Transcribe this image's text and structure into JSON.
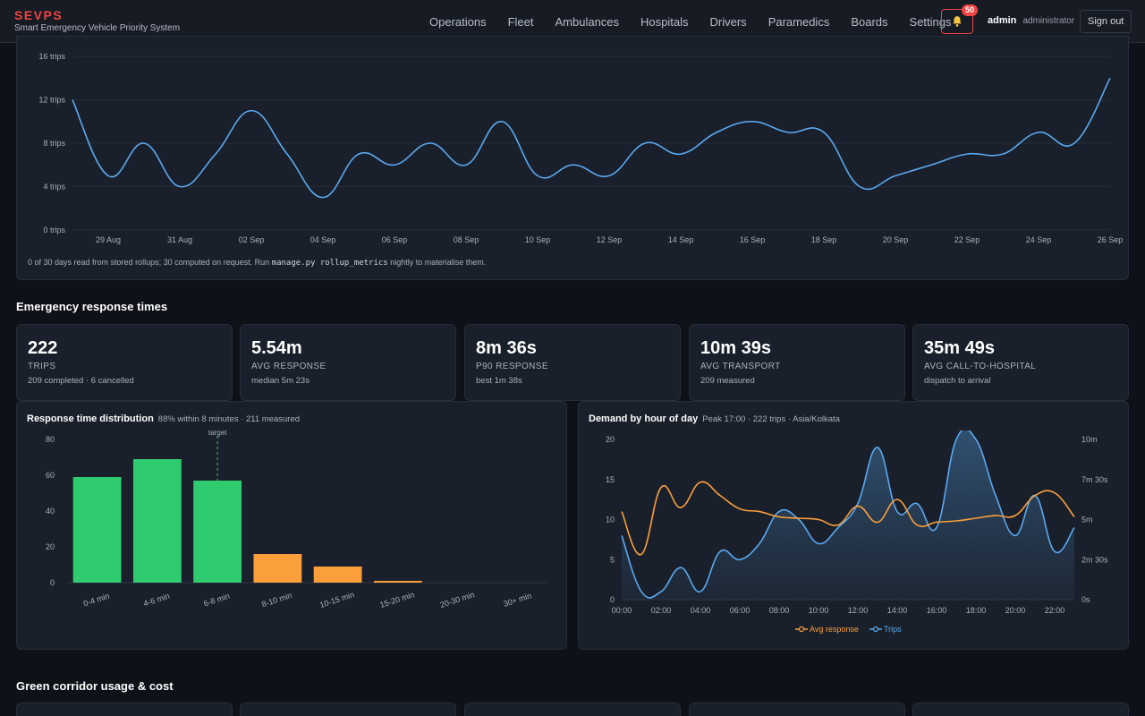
{
  "header": {
    "brand": "SEVPS",
    "subtitle": "Smart Emergency Vehicle Priority System",
    "nav": [
      "Operations",
      "Fleet",
      "Ambulances",
      "Hospitals",
      "Drivers",
      "Paramedics",
      "Boards",
      "Settings"
    ],
    "notification_count": "50",
    "user_name": "admin",
    "user_role": "administrator",
    "signout_label": "Sign out",
    "bell_icon": "bell-icon"
  },
  "trend": {
    "note_pre": "0 of 30 days read from stored rollups; 30 computed on request. Run ",
    "note_code": "manage.py rollup_metrics",
    "note_post": " nightly to materialise them."
  },
  "response_section": {
    "title": "Emergency response times",
    "kpis": [
      {
        "value": "222",
        "label": "Trips",
        "sub": "209 completed · 6 cancelled"
      },
      {
        "value": "5.54m",
        "label": "Avg response",
        "sub": "median 5m 23s"
      },
      {
        "value": "8m 36s",
        "label": "P90 response",
        "sub": "best 1m 38s"
      },
      {
        "value": "10m 39s",
        "label": "Avg transport",
        "sub": "209 measured"
      },
      {
        "value": "35m 49s",
        "label": "Avg call-to-hospital",
        "sub": "dispatch to arrival"
      }
    ]
  },
  "distribution": {
    "title": "Response time distribution",
    "subtitle": "88% within 8 minutes · 211 measured"
  },
  "demand": {
    "title": "Demand by hour of day",
    "subtitle": "Peak 17:00 · 222 trips · Asia/Kolkata"
  },
  "green_section": {
    "title": "Green corridor usage & cost"
  },
  "colors": {
    "trend_line": "#5aa9f0",
    "bar_green": "#2ecc6f",
    "bar_orange": "#fb9f3a",
    "avg_response_line": "#fb9f3a",
    "trips_line": "#5aa9f0",
    "alert_red": "#ef4444"
  },
  "chart_data": [
    {
      "type": "line",
      "x": [
        "28 Aug",
        "29 Aug",
        "30 Aug",
        "31 Aug",
        "01 Sep",
        "02 Sep",
        "03 Sep",
        "04 Sep",
        "05 Sep",
        "06 Sep",
        "07 Sep",
        "08 Sep",
        "09 Sep",
        "10 Sep",
        "11 Sep",
        "12 Sep",
        "13 Sep",
        "14 Sep",
        "15 Sep",
        "16 Sep",
        "17 Sep",
        "18 Sep",
        "19 Sep",
        "20 Sep",
        "21 Sep",
        "22 Sep",
        "23 Sep",
        "24 Sep",
        "25 Sep",
        "26 Sep"
      ],
      "xticks": [
        "29 Aug",
        "31 Aug",
        "02 Sep",
        "04 Sep",
        "06 Sep",
        "08 Sep",
        "10 Sep",
        "12 Sep",
        "14 Sep",
        "16 Sep",
        "18 Sep",
        "20 Sep",
        "22 Sep",
        "24 Sep",
        "26 Sep"
      ],
      "series": [
        {
          "values": [
            12,
            5,
            8,
            4,
            7,
            11,
            7,
            3,
            7,
            6,
            8,
            6,
            10,
            5,
            6,
            5,
            8,
            7,
            9,
            10,
            9,
            9,
            4,
            5,
            6,
            7,
            7,
            9,
            8,
            14
          ]
        }
      ],
      "yticks": [
        "0 trips",
        "4 trips",
        "8 trips",
        "12 trips",
        "16 trips"
      ],
      "ylim": [
        0,
        16
      ]
    },
    {
      "type": "bar",
      "categories": [
        "0-4 min",
        "4-6 min",
        "6-8 min",
        "8-10 min",
        "10-15 min",
        "15-20 min",
        "20-30 min",
        "30+ min"
      ],
      "values": [
        59,
        69,
        57,
        16,
        9,
        1,
        0,
        0
      ],
      "colors": [
        "#2ecc6f",
        "#2ecc6f",
        "#2ecc6f",
        "#fb9f3a",
        "#fb9f3a",
        "#fb9f3a",
        "#fb9f3a",
        "#fb9f3a"
      ],
      "ylim": [
        0,
        80
      ],
      "yticks": [
        "0",
        "20",
        "40",
        "60",
        "80"
      ],
      "annotation": "target",
      "target_after_category": "6-8 min"
    },
    {
      "type": "line",
      "x": [
        "00:00",
        "01:00",
        "02:00",
        "03:00",
        "04:00",
        "05:00",
        "06:00",
        "07:00",
        "08:00",
        "09:00",
        "10:00",
        "11:00",
        "12:00",
        "13:00",
        "14:00",
        "15:00",
        "16:00",
        "17:00",
        "18:00",
        "19:00",
        "20:00",
        "21:00",
        "22:00",
        "23:00"
      ],
      "xticks": [
        "00:00",
        "02:00",
        "04:00",
        "06:00",
        "08:00",
        "10:00",
        "12:00",
        "14:00",
        "16:00",
        "18:00",
        "20:00",
        "22:00"
      ],
      "series": [
        {
          "name": "Avg response",
          "axis": "right",
          "unit": "seconds",
          "values": [
            330,
            170,
            420,
            345,
            440,
            390,
            340,
            330,
            310,
            305,
            300,
            280,
            350,
            290,
            375,
            280,
            290,
            295,
            305,
            315,
            315,
            390,
            400,
            310
          ]
        },
        {
          "name": "Trips",
          "axis": "left",
          "values": [
            8,
            1,
            1,
            4,
            1,
            6,
            5,
            7,
            11,
            10,
            7,
            9,
            12,
            19,
            11,
            12,
            9,
            20,
            20,
            13,
            8,
            13,
            6,
            9
          ]
        }
      ],
      "ylim": [
        0,
        20
      ],
      "yticks": [
        "0",
        "5",
        "10",
        "15",
        "20"
      ],
      "ylim_right": [
        0,
        600
      ],
      "yticks_right": [
        "0s",
        "2m 30s",
        "5m",
        "7m 30s",
        "10m"
      ]
    }
  ]
}
